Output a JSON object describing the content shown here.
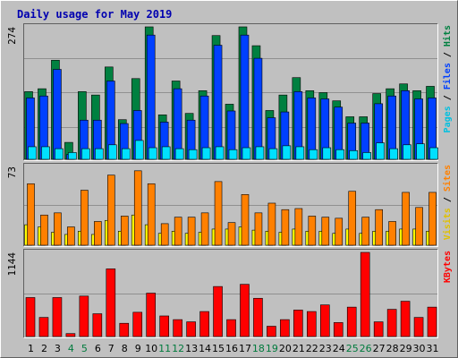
{
  "chart_data": [
    {
      "type": "bar",
      "title": "Daily usage for May 2019",
      "categories": [
        "1",
        "2",
        "3",
        "4",
        "5",
        "6",
        "7",
        "8",
        "9",
        "10",
        "11",
        "12",
        "13",
        "14",
        "15",
        "16",
        "17",
        "18",
        "19",
        "20",
        "21",
        "22",
        "23",
        "24",
        "25",
        "26",
        "27",
        "28",
        "29",
        "30",
        "31"
      ],
      "weekend_days": [
        "4",
        "5",
        "11",
        "12",
        "18",
        "19",
        "25",
        "26"
      ],
      "ymax_label": "274",
      "ylim": [
        0,
        274
      ],
      "legend": [
        {
          "label": "Hits",
          "color": "#008040"
        },
        {
          "label": "Files",
          "color": "#0040ff"
        },
        {
          "label": "Pages",
          "color": "#00e0ff"
        }
      ],
      "series": [
        {
          "name": "Hits",
          "color": "#008040",
          "values": [
            140,
            146,
            205,
            35,
            140,
            133,
            191,
            82,
            167,
            274,
            92,
            162,
            95,
            142,
            256,
            114,
            274,
            235,
            101,
            133,
            169,
            142,
            138,
            121,
            88,
            88,
            136,
            146,
            156,
            142,
            151
          ]
        },
        {
          "name": "Files",
          "color": "#0040ff",
          "values": [
            127,
            131,
            186,
            10,
            81,
            81,
            162,
            74,
            101,
            257,
            77,
            146,
            81,
            131,
            236,
            100,
            257,
            209,
            86,
            98,
            140,
            127,
            125,
            108,
            75,
            75,
            115,
            131,
            142,
            125,
            127
          ]
        },
        {
          "name": "Pages",
          "color": "#00e0ff",
          "values": [
            26,
            26,
            22,
            14,
            22,
            22,
            30,
            22,
            39,
            24,
            26,
            22,
            20,
            24,
            26,
            20,
            24,
            26,
            22,
            28,
            26,
            20,
            24,
            20,
            18,
            14,
            34,
            22,
            30,
            32,
            24
          ]
        }
      ]
    },
    {
      "type": "bar",
      "ymax_label": "73",
      "ylim": [
        0,
        73
      ],
      "legend": [
        {
          "label": "Sites",
          "color": "#ff8000"
        },
        {
          "label": "Visits",
          "color": "#ffff00"
        }
      ],
      "series": [
        {
          "name": "Visits",
          "color": "#ffff00",
          "values": [
            19,
            17,
            12,
            10,
            13,
            10,
            23,
            13,
            28,
            19,
            11,
            13,
            11,
            12,
            15,
            15,
            17,
            14,
            13,
            12,
            15,
            13,
            13,
            11,
            15,
            11,
            13,
            13,
            15,
            15,
            13
          ]
        },
        {
          "name": "Sites",
          "color": "#ff8000",
          "values": [
            57,
            28,
            30,
            17,
            51,
            22,
            65,
            27,
            69,
            57,
            20,
            26,
            26,
            30,
            59,
            21,
            47,
            30,
            39,
            33,
            34,
            27,
            26,
            25,
            50,
            26,
            33,
            22,
            49,
            35,
            49
          ]
        }
      ]
    },
    {
      "type": "bar",
      "ymax_label": "1144",
      "ylim": [
        0,
        1144
      ],
      "legend": [
        {
          "label": "KBytes",
          "color": "#ff0000"
        }
      ],
      "series": [
        {
          "name": "KBytes",
          "color": "#ff0000",
          "values": [
            530,
            260,
            530,
            40,
            550,
            310,
            920,
            180,
            330,
            590,
            280,
            230,
            200,
            340,
            680,
            230,
            710,
            520,
            140,
            230,
            360,
            340,
            430,
            190,
            400,
            1144,
            200,
            370,
            480,
            260,
            400
          ]
        }
      ]
    }
  ]
}
